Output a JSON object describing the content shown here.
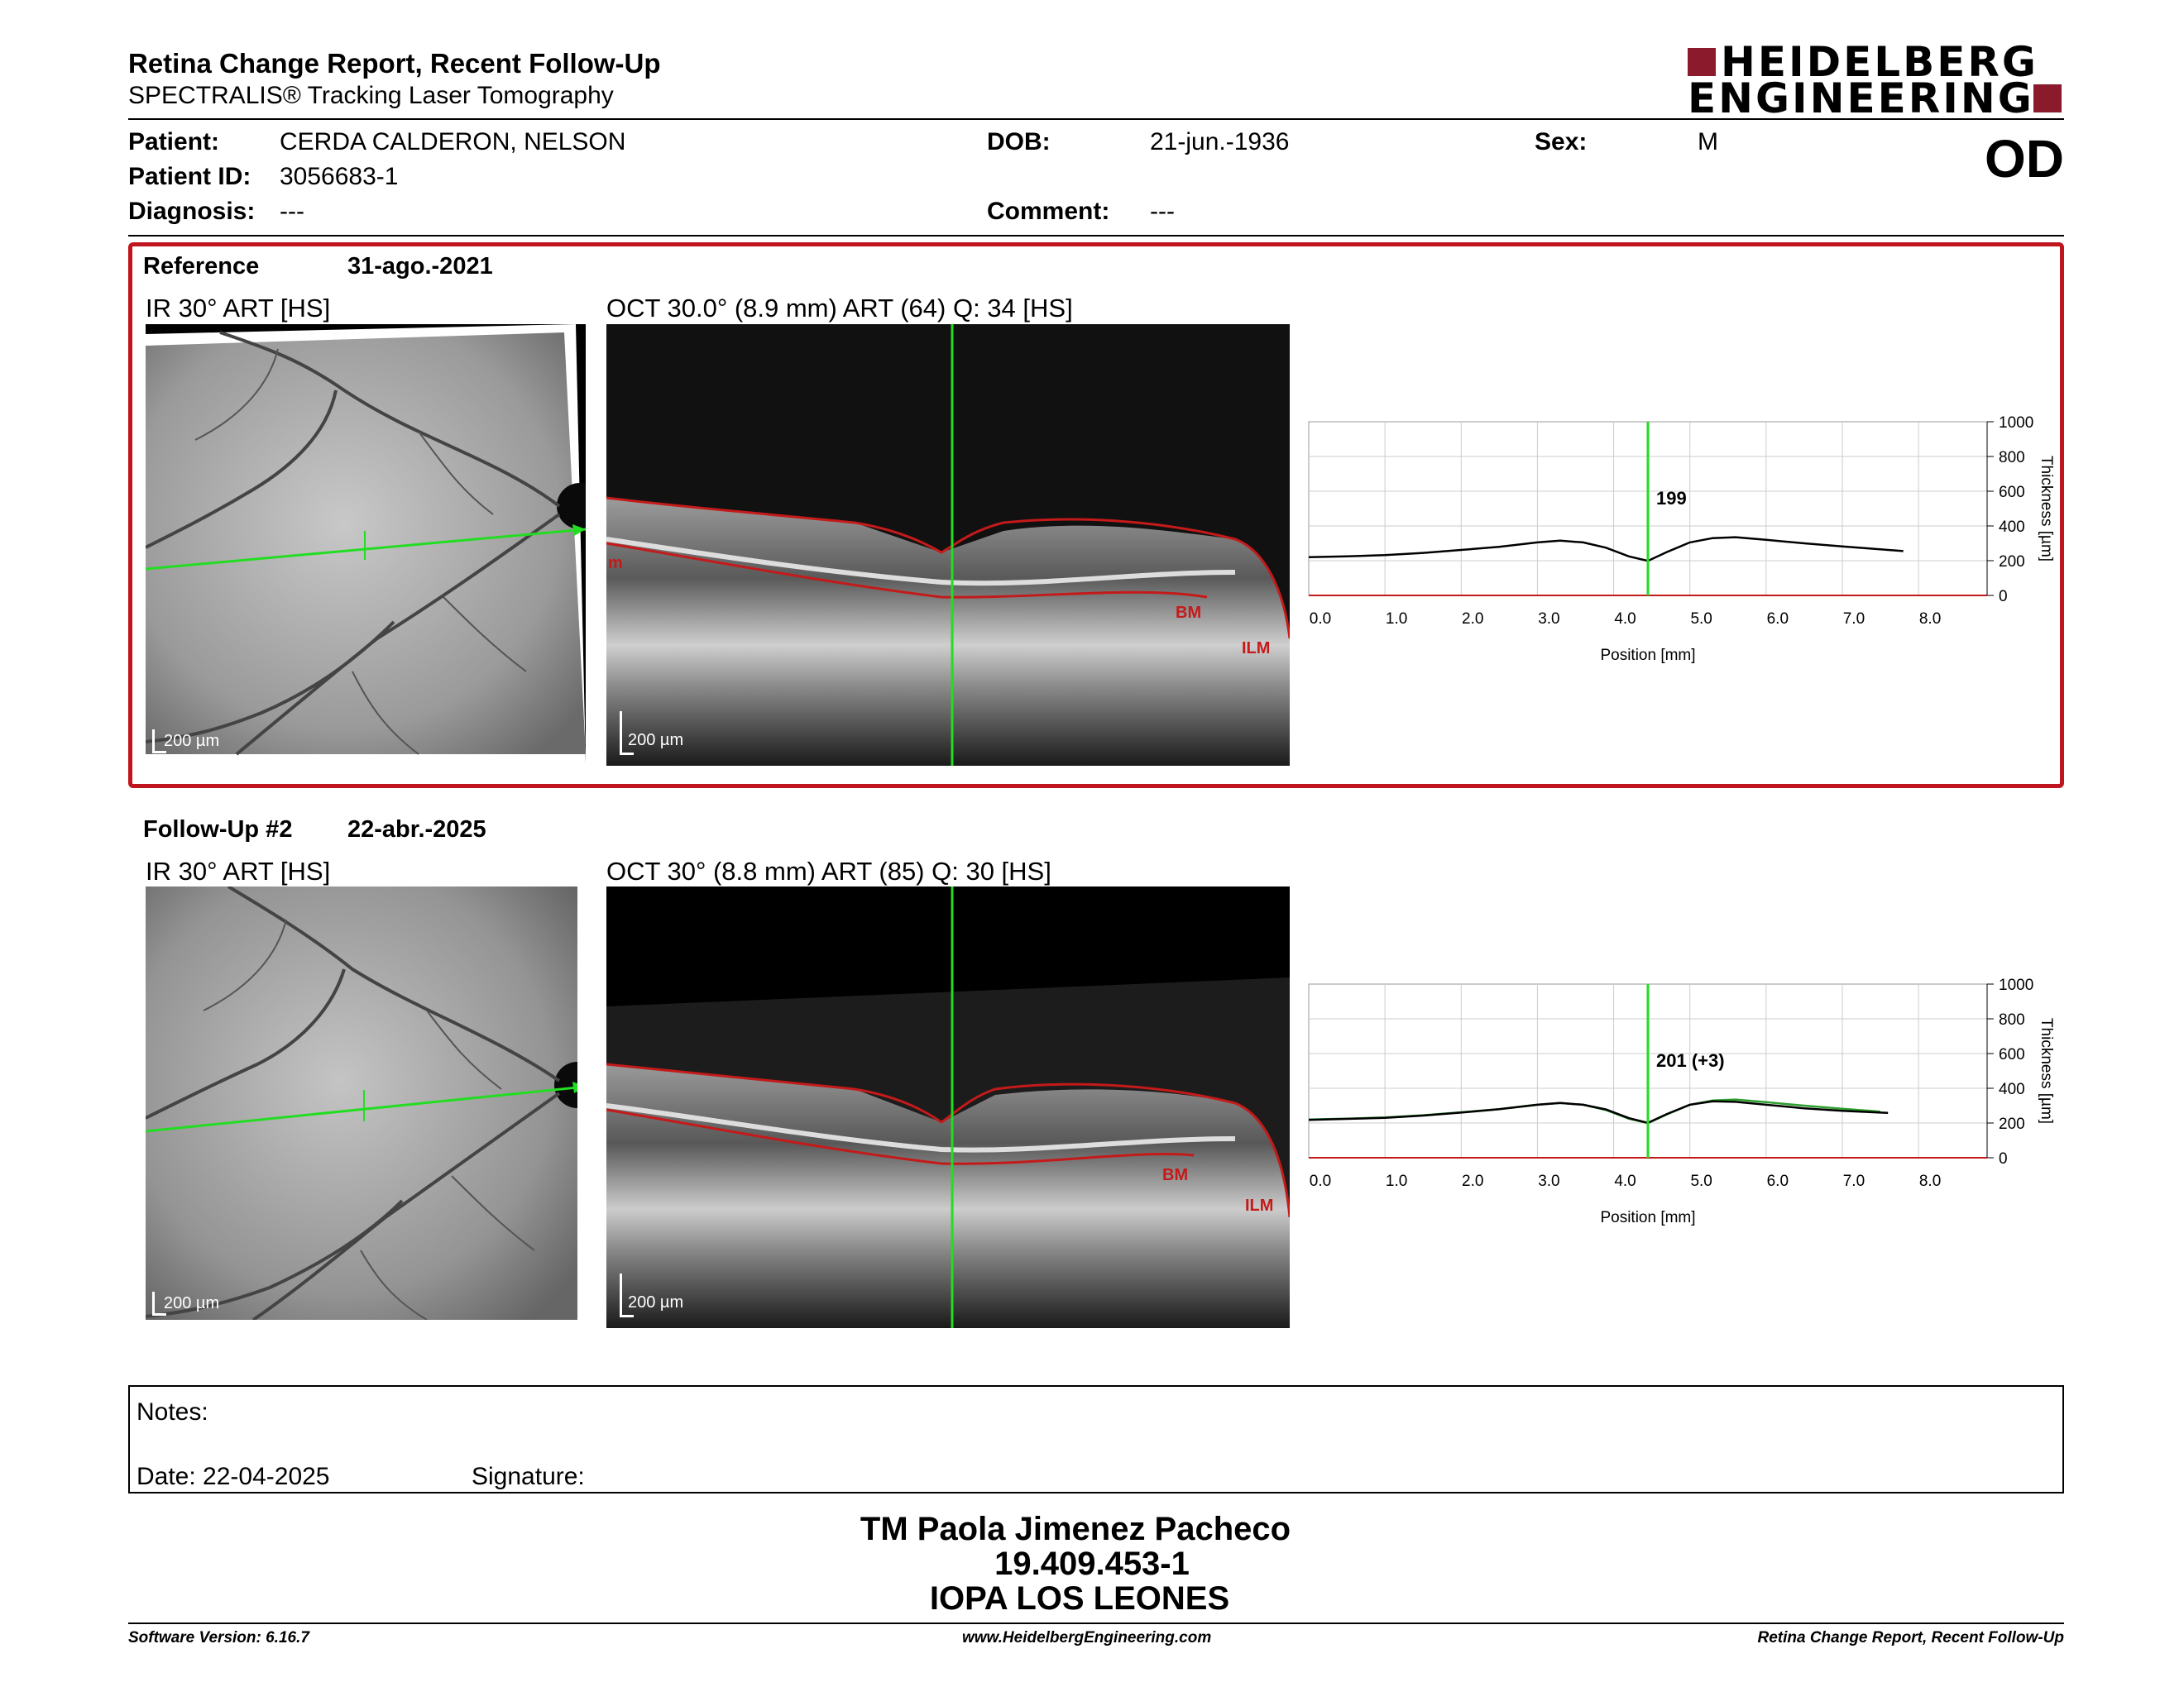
{
  "header": {
    "title": "Retina Change Report, Recent Follow-Up",
    "subtitle": "SPECTRALIS® Tracking Laser Tomography",
    "logo_line1": "HEIDELBERG",
    "logo_line2": "ENGINEERING",
    "eye": "OD"
  },
  "patient": {
    "patient_label": "Patient:",
    "patient_value": "CERDA CALDERON, NELSON",
    "id_label": "Patient ID:",
    "id_value": "3056683-1",
    "diagnosis_label": "Diagnosis:",
    "diagnosis_value": "---",
    "dob_label": "DOB:",
    "dob_value": "21-jun.-1936",
    "comment_label": "Comment:",
    "comment_value": "---",
    "sex_label": "Sex:",
    "sex_value": "M"
  },
  "reference": {
    "label": "Reference",
    "date": "31-ago.-2021",
    "ir_caption": "IR 30° ART [HS]",
    "oct_caption": "OCT 30.0° (8.9 mm) ART (64) Q: 34 [HS]",
    "ir_scale": "200 µm",
    "oct_scale": "200 µm",
    "layer_bm": "BM",
    "layer_ilm": "ILM",
    "layer_m": "m"
  },
  "followup": {
    "label": "Follow-Up #2",
    "date": "22-abr.-2025",
    "ir_caption": "IR 30° ART [HS]",
    "oct_caption": "OCT 30° (8.8 mm) ART (85) Q: 30 [HS]",
    "ir_scale": "200 µm",
    "oct_scale": "200 µm",
    "layer_bm": "BM",
    "layer_ilm": "ILM"
  },
  "chart_data": [
    {
      "type": "line",
      "xlabel": "Position [mm]",
      "ylabel": "Thickness [µm]",
      "xlim": [
        0,
        8.9
      ],
      "ylim": [
        0,
        1000
      ],
      "xticks": [
        "0.0",
        "1.0",
        "2.0",
        "3.0",
        "4.0",
        "5.0",
        "6.0",
        "7.0",
        "8.0"
      ],
      "yticks": [
        "0",
        "200",
        "400",
        "600",
        "800",
        "1000"
      ],
      "cursor_x": 4.45,
      "cursor_label": "199",
      "grid": true,
      "series": [
        {
          "color": "#000000",
          "x": [
            0.0,
            0.5,
            1.0,
            1.5,
            2.0,
            2.5,
            3.0,
            3.3,
            3.6,
            3.9,
            4.2,
            4.45,
            4.7,
            5.0,
            5.3,
            5.6,
            6.0,
            6.5,
            7.0,
            7.5,
            7.8
          ],
          "y": [
            220,
            225,
            232,
            245,
            262,
            280,
            305,
            315,
            305,
            275,
            225,
            199,
            250,
            305,
            330,
            335,
            320,
            300,
            282,
            265,
            255
          ]
        }
      ]
    },
    {
      "type": "line",
      "xlabel": "Position [mm]",
      "ylabel": "Thickness [µm]",
      "xlim": [
        0,
        8.9
      ],
      "ylim": [
        0,
        1000
      ],
      "xticks": [
        "0.0",
        "1.0",
        "2.0",
        "3.0",
        "4.0",
        "5.0",
        "6.0",
        "7.0",
        "8.0"
      ],
      "yticks": [
        "0",
        "200",
        "400",
        "600",
        "800",
        "1000"
      ],
      "cursor_x": 4.45,
      "cursor_label": "201 (+3)",
      "grid": true,
      "series": [
        {
          "color": "#2e9e2e",
          "x": [
            0.0,
            0.5,
            1.0,
            1.5,
            2.0,
            2.5,
            3.0,
            3.3,
            3.6,
            3.9,
            4.2,
            4.45,
            4.7,
            5.0,
            5.3,
            5.6,
            6.0,
            6.5,
            7.0,
            7.5
          ],
          "y": [
            220,
            225,
            232,
            245,
            262,
            280,
            305,
            315,
            305,
            275,
            225,
            199,
            250,
            305,
            330,
            335,
            320,
            300,
            282,
            265
          ]
        },
        {
          "color": "#000000",
          "x": [
            0.0,
            0.5,
            1.0,
            1.5,
            2.0,
            2.5,
            3.0,
            3.3,
            3.6,
            3.9,
            4.2,
            4.45,
            4.7,
            5.0,
            5.3,
            5.6,
            6.0,
            6.5,
            7.0,
            7.5,
            7.6
          ],
          "y": [
            218,
            224,
            230,
            243,
            260,
            280,
            305,
            315,
            305,
            278,
            228,
            201,
            252,
            305,
            325,
            322,
            305,
            285,
            270,
            260,
            258
          ]
        }
      ]
    }
  ],
  "notes": {
    "notes_label": "Notes:",
    "date_label": "Date: 22-04-2025",
    "signature_label": "Signature:"
  },
  "signature": {
    "name": "TM Paola Jimenez Pacheco",
    "rut": "19.409.453-1",
    "institution": "IOPA LOS LEONES"
  },
  "footer": {
    "software": "Software Version: 6.16.7",
    "website": "www.HeidelbergEngineering.com",
    "report": "Retina Change Report, Recent Follow-Up"
  }
}
